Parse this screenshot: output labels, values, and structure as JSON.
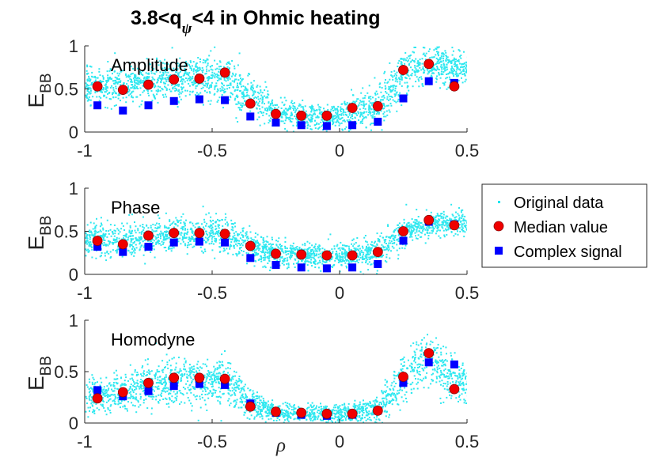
{
  "figure": {
    "title_prefix": "3.8<q",
    "title_sub": "ψ",
    "title_suffix": "<4 in Ohmic heating",
    "xlabel": "ρ",
    "ylabel_main": "E",
    "ylabel_sub": "BB"
  },
  "legend": {
    "entries": [
      {
        "label": "Original data",
        "color": "#00e5ee"
      },
      {
        "label": "Median value",
        "color": "#e60000"
      },
      {
        "label": "Complex signal",
        "color": "#0000e6"
      }
    ]
  },
  "colors": {
    "scatter": "#2ee8f0",
    "median": "#f00000",
    "complex": "#0000ff",
    "axis": "#262626"
  },
  "chart_data": [
    {
      "type": "scatter",
      "panel_title": "Amplitude",
      "xlim": [
        -1,
        0.5
      ],
      "ylim": [
        0,
        1
      ],
      "x_ticks": [
        "-1",
        "-0.5",
        "0",
        "0.5"
      ],
      "y_ticks": [
        "0",
        "0.5",
        "1"
      ],
      "x": [
        -0.95,
        -0.85,
        -0.75,
        -0.65,
        -0.55,
        -0.45,
        -0.35,
        -0.25,
        -0.15,
        -0.05,
        0.05,
        0.15,
        0.25,
        0.35,
        0.45
      ],
      "series": [
        {
          "name": "Median value",
          "values": [
            0.53,
            0.49,
            0.55,
            0.61,
            0.62,
            0.69,
            0.33,
            0.21,
            0.19,
            0.19,
            0.28,
            0.3,
            0.72,
            0.79,
            0.53
          ]
        },
        {
          "name": "Complex signal",
          "values": [
            0.31,
            0.25,
            0.31,
            0.36,
            0.38,
            0.37,
            0.18,
            0.11,
            0.08,
            0.07,
            0.08,
            0.12,
            0.39,
            0.59,
            0.57
          ]
        }
      ],
      "original_data_center": [
        0.55,
        0.55,
        0.58,
        0.62,
        0.63,
        0.66,
        0.4,
        0.25,
        0.2,
        0.18,
        0.25,
        0.3,
        0.7,
        0.78,
        0.75
      ],
      "original_data_spread": [
        0.2,
        0.2,
        0.2,
        0.22,
        0.22,
        0.22,
        0.22,
        0.15,
        0.12,
        0.12,
        0.18,
        0.25,
        0.2,
        0.18,
        0.18
      ]
    },
    {
      "type": "scatter",
      "panel_title": "Phase",
      "xlim": [
        -1,
        0.5
      ],
      "ylim": [
        0,
        1
      ],
      "x_ticks": [
        "-1",
        "-0.5",
        "0",
        "0.5"
      ],
      "y_ticks": [
        "0",
        "0.5",
        "1"
      ],
      "x": [
        -0.95,
        -0.85,
        -0.75,
        -0.65,
        -0.55,
        -0.45,
        -0.35,
        -0.25,
        -0.15,
        -0.05,
        0.05,
        0.15,
        0.25,
        0.35,
        0.45
      ],
      "series": [
        {
          "name": "Median value",
          "values": [
            0.39,
            0.35,
            0.45,
            0.48,
            0.48,
            0.47,
            0.33,
            0.24,
            0.23,
            0.22,
            0.22,
            0.26,
            0.5,
            0.63,
            0.57
          ]
        },
        {
          "name": "Complex signal",
          "values": [
            0.32,
            0.26,
            0.32,
            0.37,
            0.38,
            0.37,
            0.19,
            0.11,
            0.08,
            0.07,
            0.08,
            0.12,
            0.39,
            0.61,
            0.58
          ]
        }
      ],
      "original_data_center": [
        0.42,
        0.4,
        0.45,
        0.47,
        0.47,
        0.46,
        0.33,
        0.25,
        0.23,
        0.22,
        0.23,
        0.28,
        0.5,
        0.6,
        0.6
      ],
      "original_data_spread": [
        0.18,
        0.18,
        0.18,
        0.18,
        0.18,
        0.18,
        0.17,
        0.13,
        0.12,
        0.12,
        0.13,
        0.17,
        0.15,
        0.12,
        0.12
      ]
    },
    {
      "type": "scatter",
      "panel_title": "Homodyne",
      "xlim": [
        -1,
        0.5
      ],
      "ylim": [
        0,
        1
      ],
      "x_ticks": [
        "-1",
        "-0.5",
        "0",
        "0.5"
      ],
      "y_ticks": [
        "0",
        "0.5",
        "1"
      ],
      "x": [
        -0.95,
        -0.85,
        -0.75,
        -0.65,
        -0.55,
        -0.45,
        -0.35,
        -0.25,
        -0.15,
        -0.05,
        0.05,
        0.15,
        0.25,
        0.35,
        0.45
      ],
      "series": [
        {
          "name": "Median value",
          "values": [
            0.24,
            0.3,
            0.39,
            0.44,
            0.44,
            0.43,
            0.16,
            0.11,
            0.1,
            0.09,
            0.09,
            0.12,
            0.45,
            0.68,
            0.33
          ]
        },
        {
          "name": "Complex signal",
          "values": [
            0.32,
            0.26,
            0.31,
            0.36,
            0.38,
            0.37,
            0.19,
            0.1,
            0.08,
            0.07,
            0.08,
            0.12,
            0.39,
            0.59,
            0.57
          ]
        }
      ],
      "original_data_center": [
        0.28,
        0.32,
        0.38,
        0.42,
        0.42,
        0.4,
        0.18,
        0.12,
        0.1,
        0.1,
        0.11,
        0.15,
        0.45,
        0.65,
        0.4
      ],
      "original_data_spread": [
        0.15,
        0.18,
        0.2,
        0.2,
        0.2,
        0.2,
        0.12,
        0.08,
        0.07,
        0.07,
        0.08,
        0.12,
        0.22,
        0.22,
        0.2
      ]
    }
  ]
}
